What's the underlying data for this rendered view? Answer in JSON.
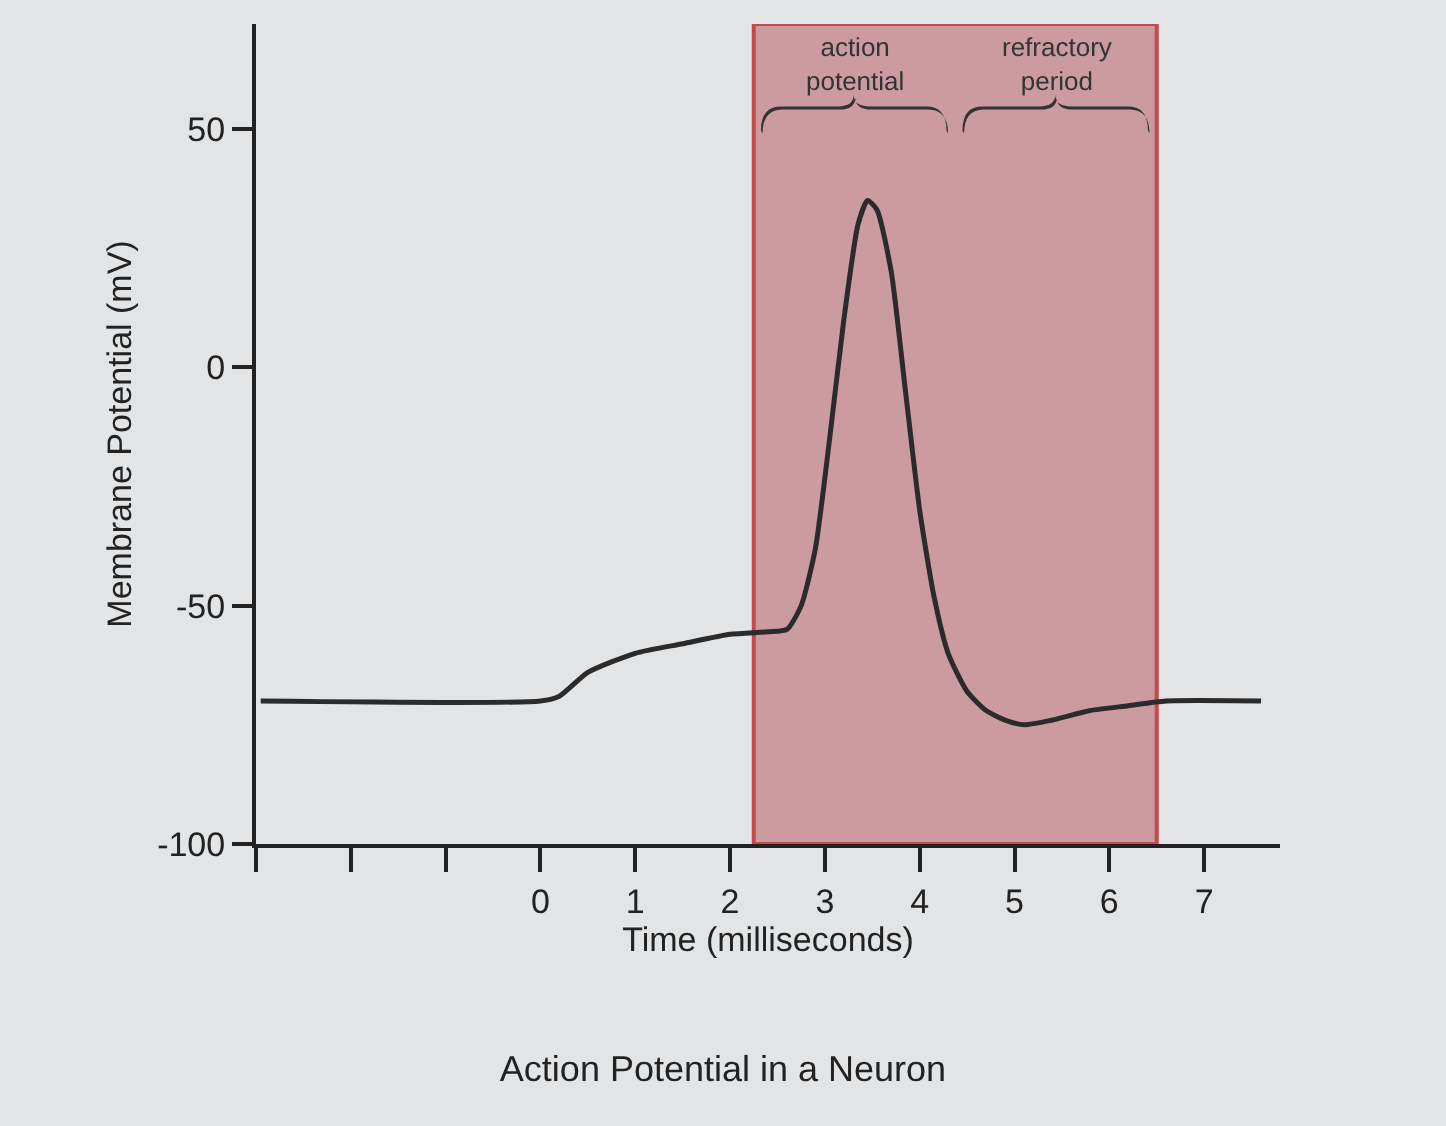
{
  "chart_data": {
    "type": "line",
    "title": "Action Potential in a Neuron",
    "xlabel": "Time (milliseconds)",
    "ylabel": "Membrane Potential (mV)",
    "x": [
      -2.95,
      0,
      0.2,
      0.5,
      1,
      1.5,
      2,
      2.4,
      2.6,
      2.75,
      2.9,
      3.05,
      3.2,
      3.35,
      3.45,
      3.55,
      3.7,
      3.85,
      4,
      4.15,
      4.3,
      4.5,
      4.7,
      4.9,
      5.1,
      5.4,
      5.8,
      6.2,
      6.6,
      7.6
    ],
    "series": [
      {
        "color": "#2b2b2b",
        "values": [
          -70,
          -70,
          -69,
          -64,
          -60,
          -58,
          -56,
          -55.5,
          -55,
          -50,
          -38,
          -15,
          10,
          30,
          35,
          33,
          20,
          -5,
          -30,
          -48,
          -60,
          -68,
          -72,
          -74,
          -75,
          -74,
          -72,
          -71,
          -70,
          -70
        ]
      }
    ],
    "xlim": [
      -3,
      7.8
    ],
    "ylim": [
      -100,
      72
    ],
    "xticks": [
      {
        "value": -3,
        "label": null
      },
      {
        "value": -2,
        "label": null
      },
      {
        "value": -1,
        "label": null
      },
      0,
      1,
      2,
      3,
      4,
      5,
      6,
      7
    ],
    "yticks": [
      -100,
      -50,
      0,
      50
    ],
    "bands": [
      {
        "axis": "x",
        "from": 2.25,
        "to": 6.5,
        "color": "#c98f93"
      }
    ],
    "annotations": [
      "action\npotential",
      "refractory\nperiod"
    ],
    "grid": false,
    "marker": "none",
    "line_style": "solid"
  }
}
